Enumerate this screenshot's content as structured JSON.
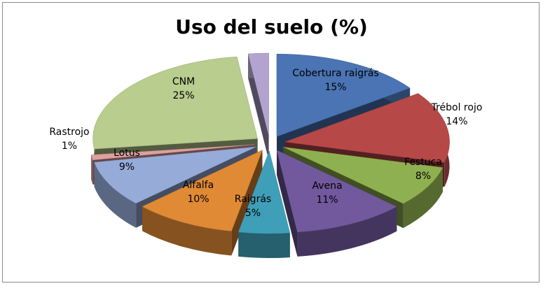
{
  "chart_data": {
    "type": "pie",
    "title": "Uso del suelo (%)",
    "three_d": true,
    "exploded": true,
    "slices": [
      {
        "name": "Cobertura raigrás",
        "value": 15,
        "label": "15%",
        "color": "#4a74b3"
      },
      {
        "name": "Trébol rojo",
        "value": 14,
        "label": "14%",
        "color": "#b74848"
      },
      {
        "name": "Festuca",
        "value": 8,
        "label": "8%",
        "color": "#8fb050"
      },
      {
        "name": "Avena",
        "value": 11,
        "label": "11%",
        "color": "#72599e"
      },
      {
        "name": "Raigrás",
        "value": 5,
        "label": "5%",
        "color": "#3f9fb8"
      },
      {
        "name": "Alfalfa",
        "value": 10,
        "label": "10%",
        "color": "#e08a35"
      },
      {
        "name": "Lotus",
        "value": 9,
        "label": "9%",
        "color": "#96abd8"
      },
      {
        "name": "Rastrojo",
        "value": 1,
        "label": "1%",
        "color": "#dea0a0"
      },
      {
        "name": "CNM",
        "value": 25,
        "label": "25%",
        "color": "#b8cd8e"
      },
      {
        "name": "",
        "value": 2,
        "label": "",
        "color": "#b3a4cf"
      }
    ]
  }
}
